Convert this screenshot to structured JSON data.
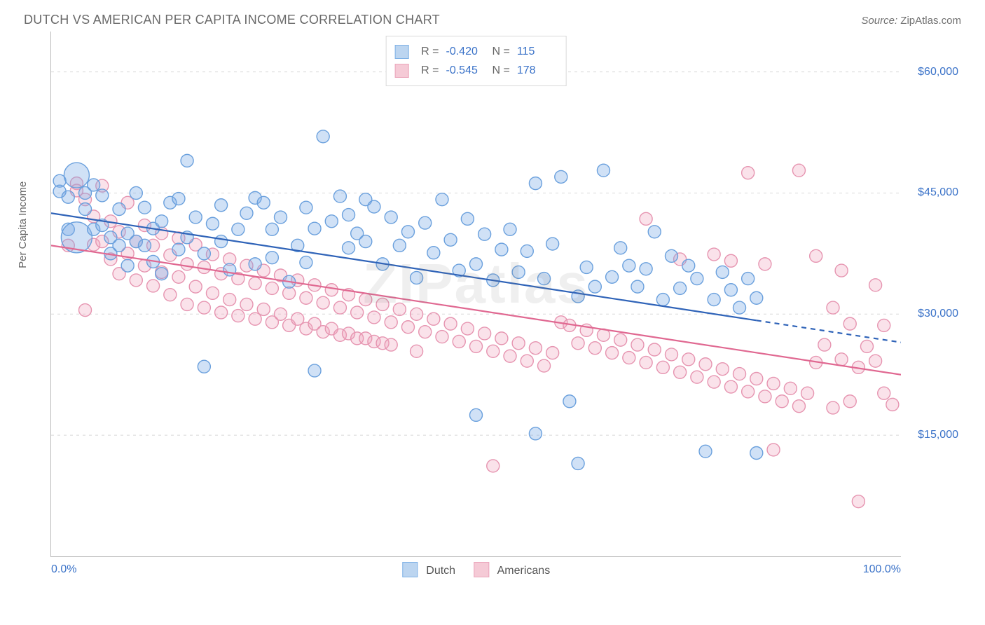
{
  "title": "DUTCH VS AMERICAN PER CAPITA INCOME CORRELATION CHART",
  "source_label": "Source:",
  "source_name": "ZipAtlas.com",
  "watermark": "ZIPatlas",
  "ylabel": "Per Capita Income",
  "chart": {
    "type": "scatter",
    "xlim": [
      0,
      100
    ],
    "ylim": [
      0,
      65000
    ],
    "x_tick_step": 10,
    "x_tick_labels_shown": {
      "0": "0.0%",
      "100": "100.0%"
    },
    "y_ticks": [
      15000,
      30000,
      45000,
      60000
    ],
    "y_tick_labels": [
      "$15,000",
      "$30,000",
      "$45,000",
      "$60,000"
    ],
    "grid_color": "#d8d8d8",
    "axis_color": "#bbbbbb",
    "background_color": "#ffffff",
    "text_color": "#666666",
    "value_color": "#3a72c8",
    "marker_radius": 9,
    "marker_stroke_width": 1.4,
    "trendline_width": 2.2
  },
  "series": [
    {
      "name": "Dutch",
      "color_fill": "rgba(120,170,228,0.35)",
      "color_stroke": "#6aa0dd",
      "swatch_fill": "#bcd5f0",
      "swatch_border": "#7fb2e6",
      "trend_color": "#2f63b8",
      "trend": {
        "y_at_x0": 42500,
        "y_at_x100": 26500,
        "solid_to_x": 83
      },
      "R": "-0.420",
      "N": "115",
      "points": [
        [
          1,
          46500
        ],
        [
          1,
          45200
        ],
        [
          2,
          44500
        ],
        [
          2,
          40500
        ],
        [
          3,
          47200,
          18
        ],
        [
          3,
          39500,
          22
        ],
        [
          4,
          45000
        ],
        [
          4,
          43000
        ],
        [
          5,
          46000
        ],
        [
          5,
          40500
        ],
        [
          6,
          44700
        ],
        [
          6,
          41000
        ],
        [
          7,
          39500
        ],
        [
          7,
          37500
        ],
        [
          8,
          43000
        ],
        [
          8,
          38500
        ],
        [
          9,
          40000
        ],
        [
          9,
          36000
        ],
        [
          10,
          45000
        ],
        [
          10,
          39000
        ],
        [
          11,
          43200
        ],
        [
          11,
          38500
        ],
        [
          12,
          40600
        ],
        [
          12,
          36500
        ],
        [
          13,
          41500
        ],
        [
          13,
          35000
        ],
        [
          14,
          43800
        ],
        [
          15,
          44300
        ],
        [
          15,
          38000
        ],
        [
          16,
          49000
        ],
        [
          16,
          39500
        ],
        [
          17,
          42000
        ],
        [
          18,
          37500
        ],
        [
          18,
          23500
        ],
        [
          19,
          41200
        ],
        [
          20,
          39000
        ],
        [
          20,
          43500
        ],
        [
          21,
          35500
        ],
        [
          22,
          40500
        ],
        [
          23,
          42500
        ],
        [
          24,
          44400
        ],
        [
          24,
          36200
        ],
        [
          25,
          43800
        ],
        [
          26,
          37000
        ],
        [
          26,
          40500
        ],
        [
          27,
          42000
        ],
        [
          28,
          34000
        ],
        [
          29,
          38500
        ],
        [
          30,
          43200
        ],
        [
          30,
          36400
        ],
        [
          31,
          40600
        ],
        [
          31,
          23000
        ],
        [
          32,
          52000
        ],
        [
          33,
          41500
        ],
        [
          34,
          44600
        ],
        [
          35,
          38200
        ],
        [
          35,
          42300
        ],
        [
          36,
          40000
        ],
        [
          37,
          39000
        ],
        [
          37,
          44200
        ],
        [
          38,
          43300
        ],
        [
          39,
          36200
        ],
        [
          40,
          42000
        ],
        [
          41,
          38500
        ],
        [
          42,
          40200
        ],
        [
          43,
          34500
        ],
        [
          44,
          41300
        ],
        [
          45,
          37600
        ],
        [
          46,
          44200
        ],
        [
          47,
          39200
        ],
        [
          48,
          35400
        ],
        [
          49,
          41800
        ],
        [
          50,
          36200
        ],
        [
          50,
          17500
        ],
        [
          51,
          39900
        ],
        [
          52,
          34200
        ],
        [
          53,
          38000
        ],
        [
          54,
          40500
        ],
        [
          55,
          35200
        ],
        [
          56,
          37800
        ],
        [
          57,
          46200
        ],
        [
          57,
          15200
        ],
        [
          58,
          34400
        ],
        [
          59,
          38700
        ],
        [
          60,
          47000
        ],
        [
          61,
          19200
        ],
        [
          62,
          32200
        ],
        [
          62,
          11500
        ],
        [
          63,
          35800
        ],
        [
          64,
          33400
        ],
        [
          65,
          47800
        ],
        [
          66,
          34600
        ],
        [
          67,
          38200
        ],
        [
          68,
          36000
        ],
        [
          69,
          33400
        ],
        [
          70,
          35600
        ],
        [
          71,
          40200
        ],
        [
          72,
          31800
        ],
        [
          73,
          37200
        ],
        [
          74,
          33200
        ],
        [
          75,
          36000
        ],
        [
          76,
          34400
        ],
        [
          77,
          13000
        ],
        [
          78,
          31800
        ],
        [
          79,
          35200
        ],
        [
          80,
          33000
        ],
        [
          81,
          30800
        ],
        [
          82,
          34400
        ],
        [
          83,
          32000
        ],
        [
          83,
          12800
        ]
      ]
    },
    {
      "name": "Americans",
      "color_fill": "rgba(240,160,185,0.30)",
      "color_stroke": "#e694b0",
      "swatch_fill": "#f5cad6",
      "swatch_border": "#eba5bb",
      "trend_color": "#e06891",
      "trend": {
        "y_at_x0": 38500,
        "y_at_x100": 22500,
        "solid_to_x": 100
      },
      "R": "-0.545",
      "N": "178",
      "points": [
        [
          2,
          38500
        ],
        [
          3,
          46200
        ],
        [
          3,
          45300
        ],
        [
          4,
          30500
        ],
        [
          4,
          44200
        ],
        [
          5,
          38600
        ],
        [
          5,
          42100
        ],
        [
          6,
          45900
        ],
        [
          6,
          39000
        ],
        [
          7,
          36800
        ],
        [
          7,
          41500
        ],
        [
          8,
          40200
        ],
        [
          8,
          35000
        ],
        [
          9,
          43800
        ],
        [
          9,
          37500
        ],
        [
          10,
          39000
        ],
        [
          10,
          34200
        ],
        [
          11,
          41000
        ],
        [
          11,
          36000
        ],
        [
          12,
          38500
        ],
        [
          12,
          33500
        ],
        [
          13,
          40000
        ],
        [
          13,
          35200
        ],
        [
          14,
          37300
        ],
        [
          14,
          32400
        ],
        [
          15,
          39400
        ],
        [
          15,
          34600
        ],
        [
          16,
          36200
        ],
        [
          16,
          31200
        ],
        [
          17,
          38600
        ],
        [
          17,
          33400
        ],
        [
          18,
          35800
        ],
        [
          18,
          30800
        ],
        [
          19,
          37400
        ],
        [
          19,
          32600
        ],
        [
          20,
          35000
        ],
        [
          20,
          30200
        ],
        [
          21,
          36800
        ],
        [
          21,
          31800
        ],
        [
          22,
          34400
        ],
        [
          22,
          29800
        ],
        [
          23,
          36000
        ],
        [
          23,
          31200
        ],
        [
          24,
          33800
        ],
        [
          24,
          29400
        ],
        [
          25,
          35400
        ],
        [
          25,
          30600
        ],
        [
          26,
          33200
        ],
        [
          26,
          29000
        ],
        [
          27,
          34800
        ],
        [
          27,
          30000
        ],
        [
          28,
          32600
        ],
        [
          28,
          28600
        ],
        [
          29,
          34200
        ],
        [
          29,
          29400
        ],
        [
          30,
          32000
        ],
        [
          30,
          28200
        ],
        [
          31,
          33600
        ],
        [
          31,
          28800
        ],
        [
          32,
          31400
        ],
        [
          32,
          27800
        ],
        [
          33,
          33000
        ],
        [
          33,
          28200
        ],
        [
          34,
          30800
        ],
        [
          34,
          27400
        ],
        [
          35,
          32400
        ],
        [
          35,
          27600
        ],
        [
          36,
          30200
        ],
        [
          36,
          27000
        ],
        [
          37,
          31800
        ],
        [
          37,
          27000
        ],
        [
          38,
          29600
        ],
        [
          38,
          26600
        ],
        [
          39,
          31200
        ],
        [
          39,
          26400
        ],
        [
          40,
          29000
        ],
        [
          40,
          26200
        ],
        [
          41,
          30600
        ],
        [
          42,
          28400
        ],
        [
          43,
          30000
        ],
        [
          43,
          25400
        ],
        [
          44,
          27800
        ],
        [
          45,
          29400
        ],
        [
          46,
          27200
        ],
        [
          47,
          28800
        ],
        [
          48,
          26600
        ],
        [
          49,
          28200
        ],
        [
          50,
          26000
        ],
        [
          51,
          27600
        ],
        [
          52,
          25400
        ],
        [
          52,
          11200
        ],
        [
          53,
          27000
        ],
        [
          54,
          24800
        ],
        [
          55,
          26400
        ],
        [
          56,
          24200
        ],
        [
          57,
          25800
        ],
        [
          58,
          23600
        ],
        [
          59,
          25200
        ],
        [
          60,
          29000
        ],
        [
          61,
          28600
        ],
        [
          62,
          26400
        ],
        [
          63,
          28000
        ],
        [
          64,
          25800
        ],
        [
          65,
          27400
        ],
        [
          66,
          25200
        ],
        [
          67,
          26800
        ],
        [
          68,
          24600
        ],
        [
          69,
          26200
        ],
        [
          70,
          24000
        ],
        [
          70,
          41800
        ],
        [
          71,
          25600
        ],
        [
          72,
          23400
        ],
        [
          73,
          25000
        ],
        [
          74,
          22800
        ],
        [
          74,
          36800
        ],
        [
          75,
          24400
        ],
        [
          76,
          22200
        ],
        [
          77,
          23800
        ],
        [
          78,
          21600
        ],
        [
          78,
          37400
        ],
        [
          79,
          23200
        ],
        [
          80,
          21000
        ],
        [
          80,
          36600
        ],
        [
          81,
          22600
        ],
        [
          82,
          20400
        ],
        [
          82,
          47500
        ],
        [
          83,
          22000
        ],
        [
          84,
          19800
        ],
        [
          84,
          36200
        ],
        [
          85,
          21400
        ],
        [
          85,
          13200
        ],
        [
          86,
          19200
        ],
        [
          87,
          20800
        ],
        [
          88,
          18600
        ],
        [
          88,
          47800
        ],
        [
          89,
          20200
        ],
        [
          90,
          24000
        ],
        [
          90,
          37200
        ],
        [
          91,
          26200
        ],
        [
          92,
          30800
        ],
        [
          92,
          18400
        ],
        [
          93,
          24400
        ],
        [
          93,
          35400
        ],
        [
          94,
          19200
        ],
        [
          94,
          28800
        ],
        [
          95,
          23400
        ],
        [
          95,
          6800
        ],
        [
          96,
          26000
        ],
        [
          97,
          24200
        ],
        [
          97,
          33600
        ],
        [
          98,
          20200
        ],
        [
          98,
          28600
        ],
        [
          99,
          18800
        ]
      ]
    }
  ],
  "legend": {
    "items": [
      {
        "label": "Dutch"
      },
      {
        "label": "Americans"
      }
    ]
  },
  "stats_box_labels": {
    "R": "R =",
    "N": "N ="
  }
}
